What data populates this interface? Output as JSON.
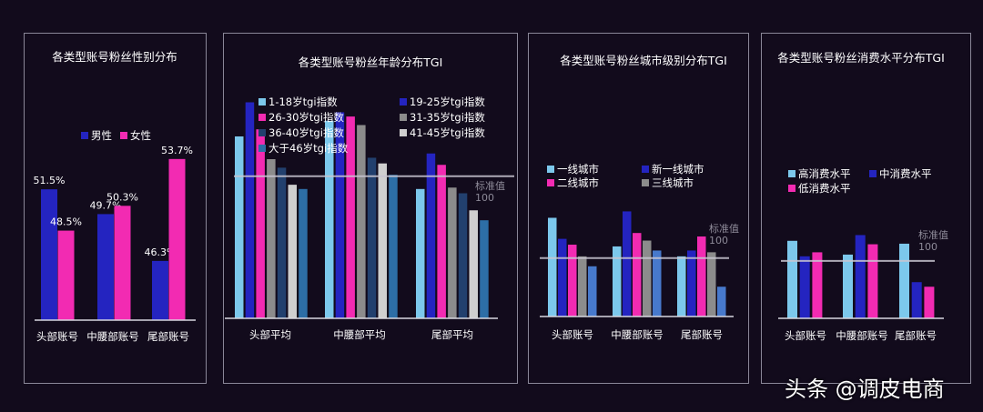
{
  "chart_data": [
    {
      "type": "bar",
      "title": "各类型账号粉丝性别分布",
      "categories": [
        "头部账号",
        "中腰部账号",
        "尾部账号"
      ],
      "series": [
        {
          "name": "男性",
          "values": [
            51.5,
            49.7,
            46.3
          ],
          "labels": [
            "51.5%",
            "49.7%",
            "46.3%"
          ]
        },
        {
          "name": "女性",
          "values": [
            48.5,
            50.3,
            53.7
          ],
          "labels": [
            "48.5%",
            "50.3%",
            "53.7%"
          ]
        }
      ],
      "ylim": [
        42,
        56
      ],
      "legend": "top",
      "grid": false
    },
    {
      "type": "bar",
      "title": "各类型账号粉丝年龄分布TGI",
      "categories": [
        "头部平均",
        "中腰部平均",
        "尾部平均"
      ],
      "series": [
        {
          "name": "1-18岁tgi指数",
          "values": [
            128,
            139,
            91
          ]
        },
        {
          "name": "19-25岁tgi指数",
          "values": [
            152,
            145,
            116
          ]
        },
        {
          "name": "26-30岁tgi指数",
          "values": [
            133,
            142,
            108
          ]
        },
        {
          "name": "31-35岁tgi指数",
          "values": [
            112,
            136,
            92
          ]
        },
        {
          "name": "36-40岁tgi指数",
          "values": [
            106,
            113,
            88
          ]
        },
        {
          "name": "41-45岁tgi指数",
          "values": [
            94,
            109,
            76
          ]
        },
        {
          "name": "大于46岁tgi指数",
          "values": [
            91,
            101,
            69
          ]
        }
      ],
      "reference": {
        "label": "标准值",
        "value": 100,
        "value_label": "100"
      },
      "ylim": [
        0,
        160
      ],
      "legend": "top",
      "grid": false
    },
    {
      "type": "bar",
      "title": "各类型账号粉丝城市级别分布TGI",
      "categories": [
        "头部账号",
        "中腰部账号",
        "尾部账号"
      ],
      "series": [
        {
          "name": "一线城市",
          "values": [
            169,
            120,
            103
          ]
        },
        {
          "name": "新一线城市",
          "values": [
            133,
            180,
            113
          ]
        },
        {
          "name": "二线城市",
          "values": [
            123,
            143,
            137
          ]
        },
        {
          "name": "三线城市",
          "values": [
            103,
            130,
            110
          ]
        },
        {
          "name": "",
          "values": [
            86,
            113,
            51
          ]
        }
      ],
      "reference": {
        "label": "标准值",
        "value": 100,
        "value_label": "100"
      },
      "ylim": [
        0,
        190
      ],
      "legend": "top",
      "grid": false
    },
    {
      "type": "bar",
      "title": "各类型账号粉丝消费水平分布TGI",
      "categories": [
        "头部账号",
        "中腰部账号",
        "尾部账号"
      ],
      "series": [
        {
          "name": "高消费水平",
          "values": [
            135,
            111,
            130
          ]
        },
        {
          "name": "中消费水平",
          "values": [
            108,
            145,
            63
          ]
        },
        {
          "name": "低消费水平",
          "values": [
            115,
            129,
            55
          ]
        }
      ],
      "reference": {
        "label": "标准值",
        "value": 100,
        "value_label": "100"
      },
      "ylim": [
        0,
        160
      ],
      "legend": "top",
      "grid": false
    }
  ],
  "colors": {
    "light_blue": "#7cc8ec",
    "blue": "#2424c0",
    "pink": "#f22bb2",
    "gray": "#8c8c8c",
    "navy": "#22406e",
    "light_gray": "#cfcfcf",
    "steel_blue": "#2d6ea6",
    "medium_blue": "#4779cc"
  },
  "watermark": "头条 @调皮电商"
}
